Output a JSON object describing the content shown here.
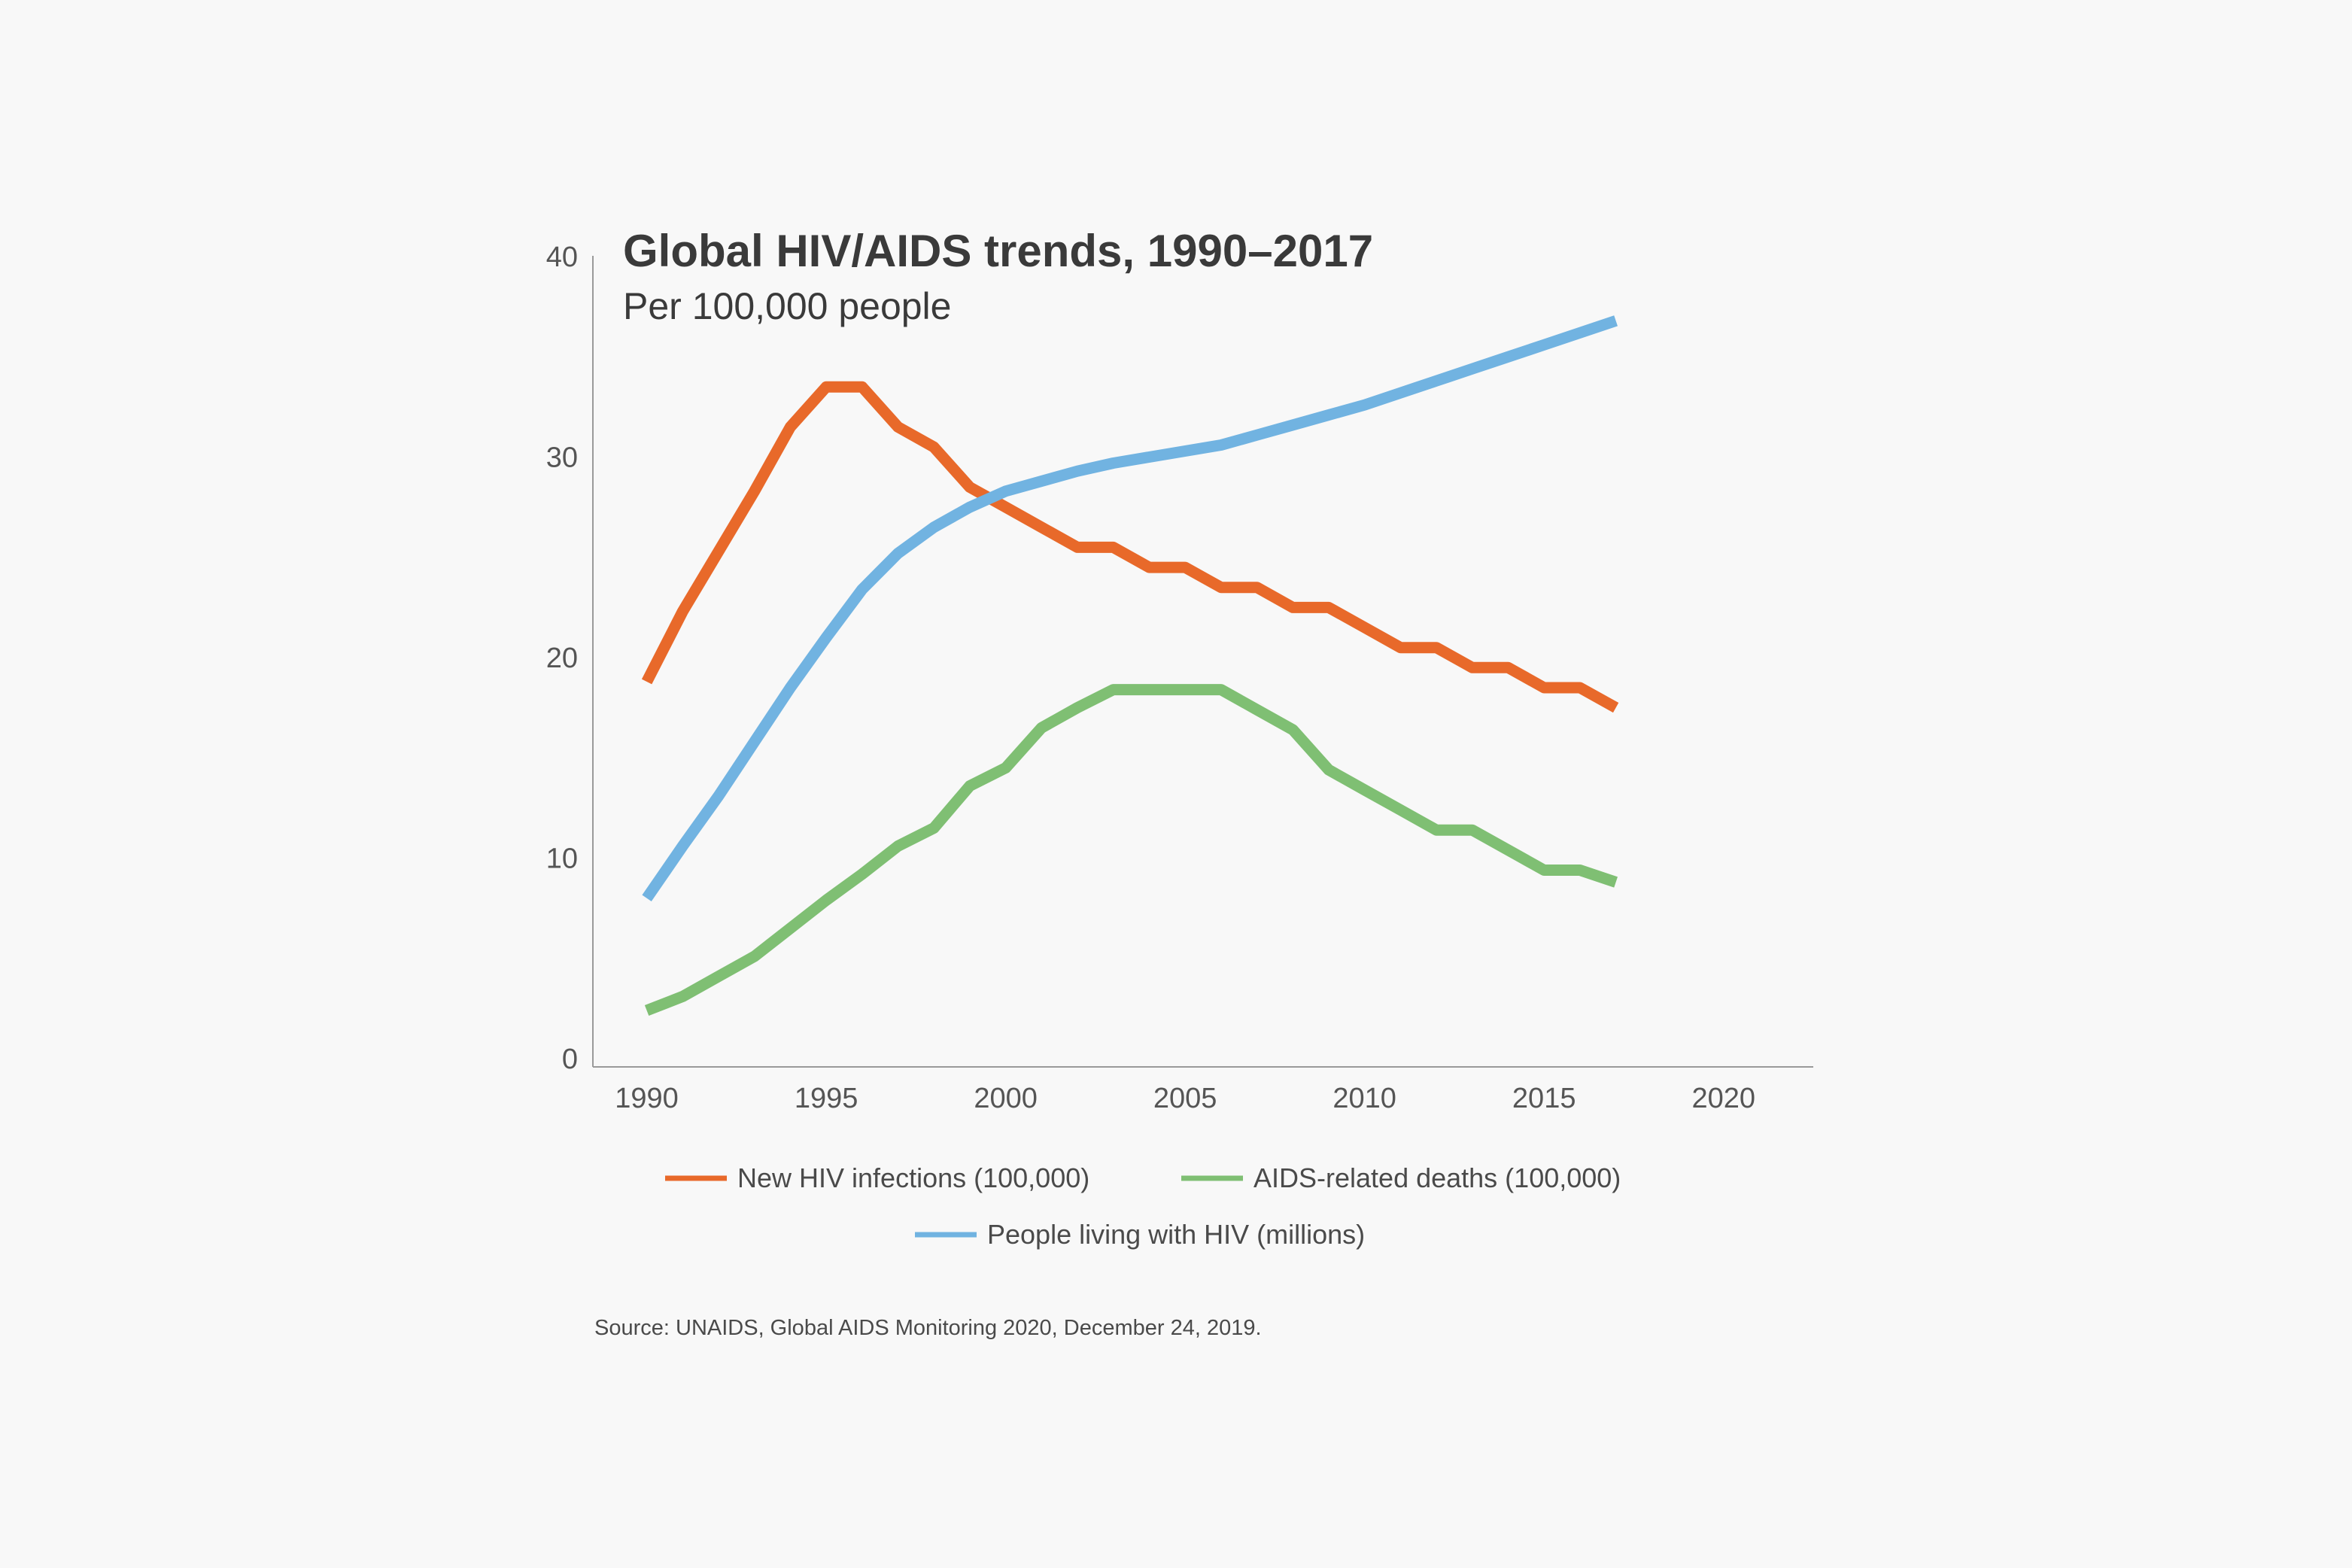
{
  "chart_data": {
    "type": "line",
    "title": "Global HIV/AIDS trends, 1990–2017",
    "subtitle": "Per 100,000 people",
    "xlabel": "",
    "ylabel": "",
    "xlim": [
      1988.5,
      2022.5
    ],
    "ylim": [
      0,
      40
    ],
    "x_ticks": [
      1990,
      1995,
      2000,
      2005,
      2010,
      2015,
      2020
    ],
    "y_ticks": [
      0,
      10,
      20,
      30,
      40
    ],
    "grid": false,
    "legend_placement": "bottom",
    "x": [
      1990,
      1991,
      1992,
      1993,
      1994,
      1995,
      1996,
      1997,
      1998,
      1999,
      2000,
      2001,
      2002,
      2003,
      2004,
      2005,
      2006,
      2007,
      2008,
      2009,
      2010,
      2011,
      2012,
      2013,
      2014,
      2015,
      2016,
      2017
    ],
    "series": [
      {
        "name": "New HIV infections (100,000)",
        "color": "#e8692a",
        "values": [
          18.8,
          22.3,
          25.3,
          28.3,
          31.5,
          33.5,
          33.5,
          31.5,
          30.5,
          28.5,
          27.5,
          26.5,
          25.5,
          25.5,
          24.5,
          24.5,
          23.5,
          23.5,
          22.5,
          22.5,
          21.5,
          20.5,
          20.5,
          19.5,
          19.5,
          18.5,
          18.5,
          17.5
        ]
      },
      {
        "name": "AIDS-related deaths (100,000)",
        "color": "#7fbf73",
        "values": [
          2.4,
          3.1,
          4.1,
          5.1,
          6.5,
          7.9,
          9.2,
          10.6,
          11.5,
          13.6,
          14.5,
          16.5,
          17.5,
          18.4,
          18.4,
          18.4,
          18.4,
          17.4,
          16.4,
          14.4,
          13.4,
          12.4,
          11.4,
          11.4,
          10.4,
          9.4,
          9.4,
          8.8
        ]
      },
      {
        "name": "People living with HIV (millions)",
        "color": "#71b3e1",
        "values": [
          8.0,
          10.6,
          13.1,
          15.8,
          18.5,
          21.0,
          23.4,
          25.2,
          26.5,
          27.5,
          28.3,
          28.8,
          29.3,
          29.7,
          30.0,
          30.3,
          30.6,
          31.1,
          31.6,
          32.1,
          32.6,
          33.2,
          33.8,
          34.4,
          35.0,
          35.6,
          36.2,
          36.8
        ]
      }
    ]
  },
  "source": "Source: UNAIDS, Global AIDS Monitoring 2020, December 24, 2019."
}
